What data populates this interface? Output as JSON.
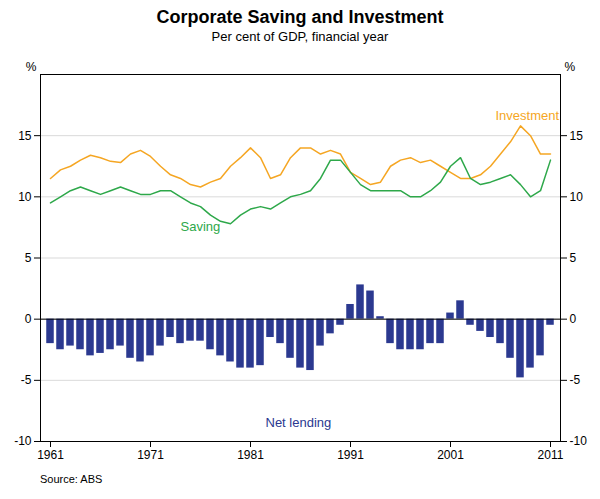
{
  "chart_data": {
    "type": "line",
    "title": "Corporate Saving and Investment",
    "subtitle": "Per cent of GDP, financial year",
    "source": "Source: ABS",
    "x": [
      1961,
      1962,
      1963,
      1964,
      1965,
      1966,
      1967,
      1968,
      1969,
      1970,
      1971,
      1972,
      1973,
      1974,
      1975,
      1976,
      1977,
      1978,
      1979,
      1980,
      1981,
      1982,
      1983,
      1984,
      1985,
      1986,
      1987,
      1988,
      1989,
      1990,
      1991,
      1992,
      1993,
      1994,
      1995,
      1996,
      1997,
      1998,
      1999,
      2000,
      2001,
      2002,
      2003,
      2004,
      2005,
      2006,
      2007,
      2008,
      2009,
      2010,
      2011
    ],
    "series": [
      {
        "name": "Net lending",
        "type": "bar",
        "color": "#2B3990",
        "values": [
          -2.0,
          -2.5,
          -2.2,
          -2.5,
          -3.0,
          -2.8,
          -2.5,
          -2.2,
          -3.2,
          -3.5,
          -3.0,
          -2.2,
          -1.5,
          -2.0,
          -1.8,
          -1.8,
          -2.5,
          -3.0,
          -3.5,
          -4.0,
          -4.0,
          -3.8,
          -1.5,
          -2.0,
          -3.2,
          -4.0,
          -4.2,
          -2.2,
          -1.2,
          -0.5,
          1.2,
          2.8,
          2.3,
          0.2,
          -2.0,
          -2.5,
          -2.5,
          -2.5,
          -2.0,
          -2.0,
          0.5,
          1.5,
          -0.5,
          -1.0,
          -1.5,
          -2.0,
          -3.2,
          -4.8,
          -4.0,
          -3.0,
          -0.5
        ]
      },
      {
        "name": "Investment",
        "type": "line",
        "color": "#F5A623",
        "values": [
          11.5,
          12.2,
          12.5,
          13.0,
          13.4,
          13.2,
          12.9,
          12.8,
          13.5,
          13.8,
          13.3,
          12.5,
          11.8,
          11.5,
          11.0,
          10.8,
          11.2,
          11.5,
          12.5,
          13.2,
          14.0,
          13.2,
          11.5,
          11.8,
          13.2,
          14.0,
          14.0,
          13.5,
          13.8,
          13.5,
          12.0,
          11.5,
          11.0,
          11.2,
          12.5,
          13.0,
          13.2,
          12.8,
          13.0,
          12.5,
          12.0,
          11.5,
          11.5,
          11.8,
          12.5,
          13.5,
          14.5,
          15.8,
          15.0,
          13.5,
          13.5
        ]
      },
      {
        "name": "Saving",
        "type": "line",
        "color": "#2EA84A",
        "values": [
          9.5,
          10.0,
          10.5,
          10.8,
          10.5,
          10.2,
          10.5,
          10.8,
          10.5,
          10.2,
          10.2,
          10.5,
          10.5,
          10.0,
          9.5,
          9.2,
          8.5,
          8.0,
          7.8,
          8.5,
          9.0,
          9.2,
          9.0,
          9.5,
          10.0,
          10.2,
          10.5,
          11.5,
          13.0,
          13.0,
          12.0,
          11.0,
          10.5,
          10.5,
          10.5,
          10.5,
          10.0,
          10.0,
          10.5,
          11.2,
          12.5,
          13.2,
          11.5,
          11.0,
          11.2,
          11.5,
          11.8,
          11.0,
          10.0,
          10.5,
          13.0
        ]
      }
    ],
    "xlim": [
      1960.0,
      2012.0
    ],
    "xticks": [
      1961,
      1971,
      1981,
      1991,
      2001,
      2011
    ],
    "ylim": [
      -10,
      20
    ],
    "yticks": [
      -10,
      -5,
      0,
      5,
      10,
      15
    ],
    "ylabel": "%",
    "y2lim": [
      -10,
      20
    ],
    "y2ticks": [
      -10,
      -5,
      0,
      5,
      10,
      15
    ],
    "y2label": "%",
    "grid": true,
    "annotations": [
      {
        "text": "Investment",
        "x": 2005.5,
        "y": 16.3,
        "color": "#F5A623"
      },
      {
        "text": "Saving",
        "x": 1974.0,
        "y": 7.2,
        "color": "#2EA84A"
      },
      {
        "text": "Net lending",
        "x": 1982.5,
        "y": -8.8,
        "color": "#2B3990"
      }
    ]
  }
}
